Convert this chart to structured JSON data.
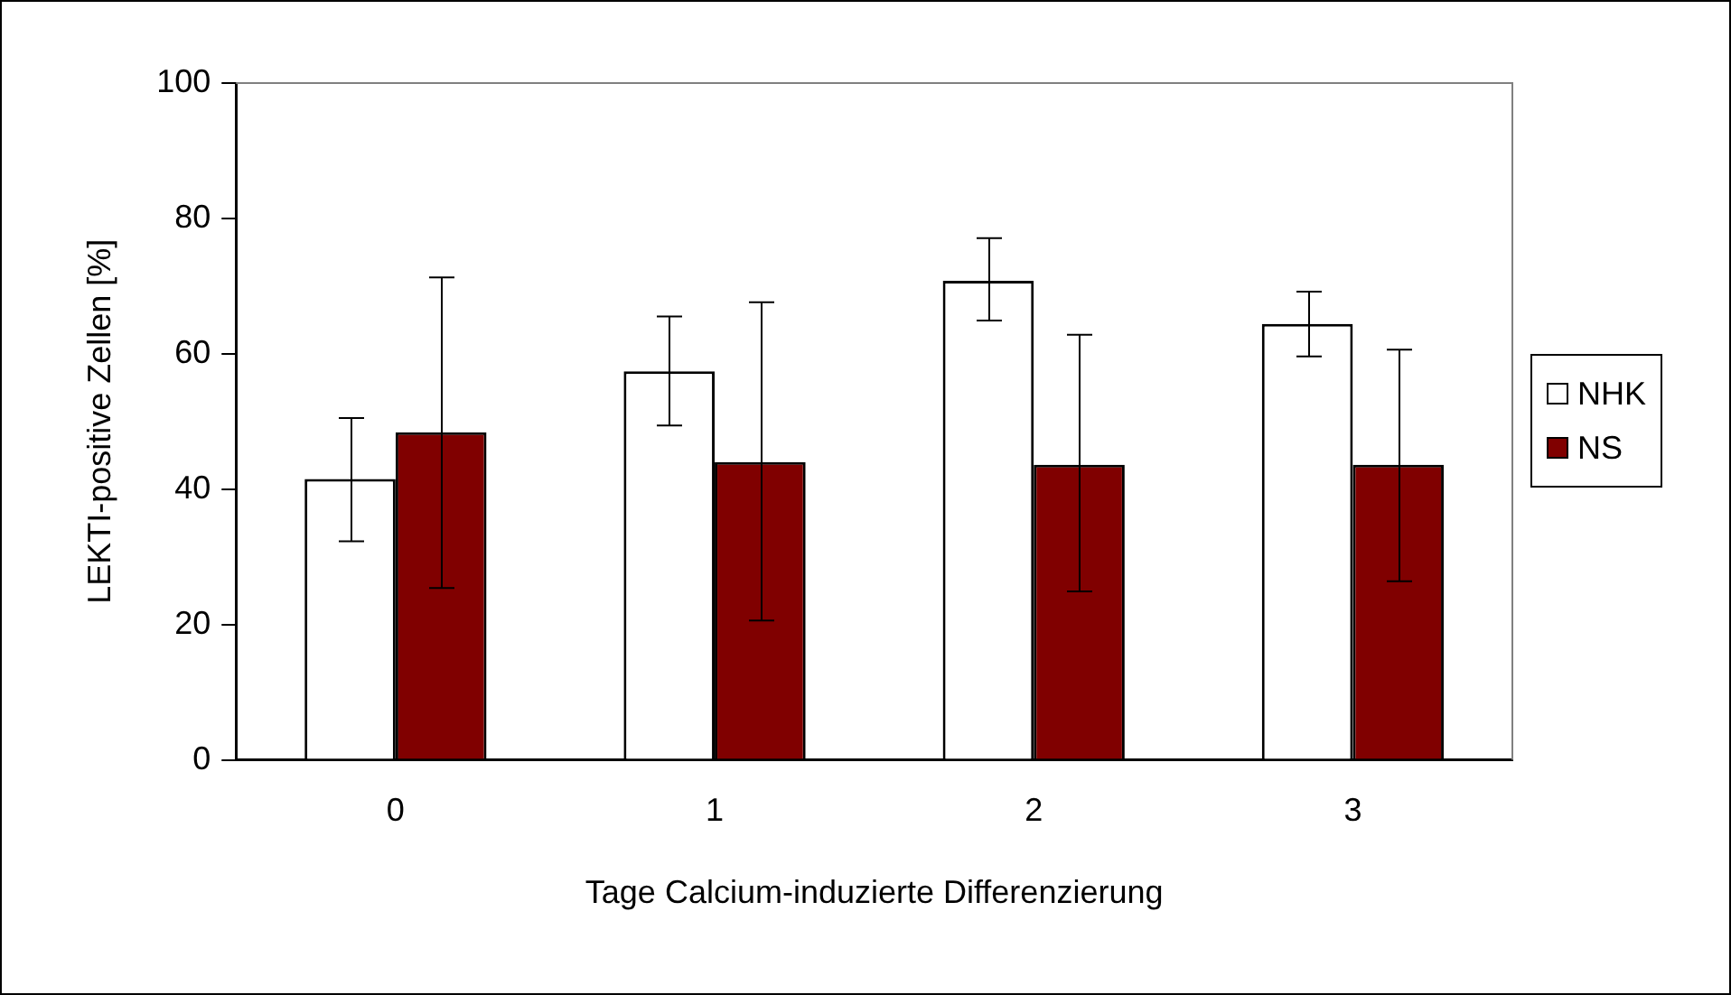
{
  "chart_data": {
    "type": "bar",
    "xlabel": "Tage Calcium-induzierte Differenzierung",
    "ylabel": "LEKTI-positive Zellen [%]",
    "categories": [
      "0",
      "1",
      "2",
      "3"
    ],
    "series": [
      {
        "name": "NHK",
        "color": "#ffffff",
        "values": [
          41.5,
          57.4,
          70.8,
          64.4
        ],
        "errors": [
          [
            32.3,
            50.5
          ],
          [
            49.4,
            65.5
          ],
          [
            64.9,
            77.1
          ],
          [
            59.6,
            69.2
          ]
        ]
      },
      {
        "name": "NS",
        "color": "#800000",
        "values": [
          48.4,
          44.0,
          43.6,
          43.6
        ],
        "errors": [
          [
            25.4,
            71.3
          ],
          [
            20.6,
            67.6
          ],
          [
            24.9,
            62.8
          ],
          [
            26.4,
            60.6
          ]
        ]
      }
    ],
    "ylim": [
      0,
      100
    ],
    "yticks": [
      0,
      20,
      40,
      60,
      80,
      100
    ],
    "grid": false,
    "legend": "right"
  }
}
